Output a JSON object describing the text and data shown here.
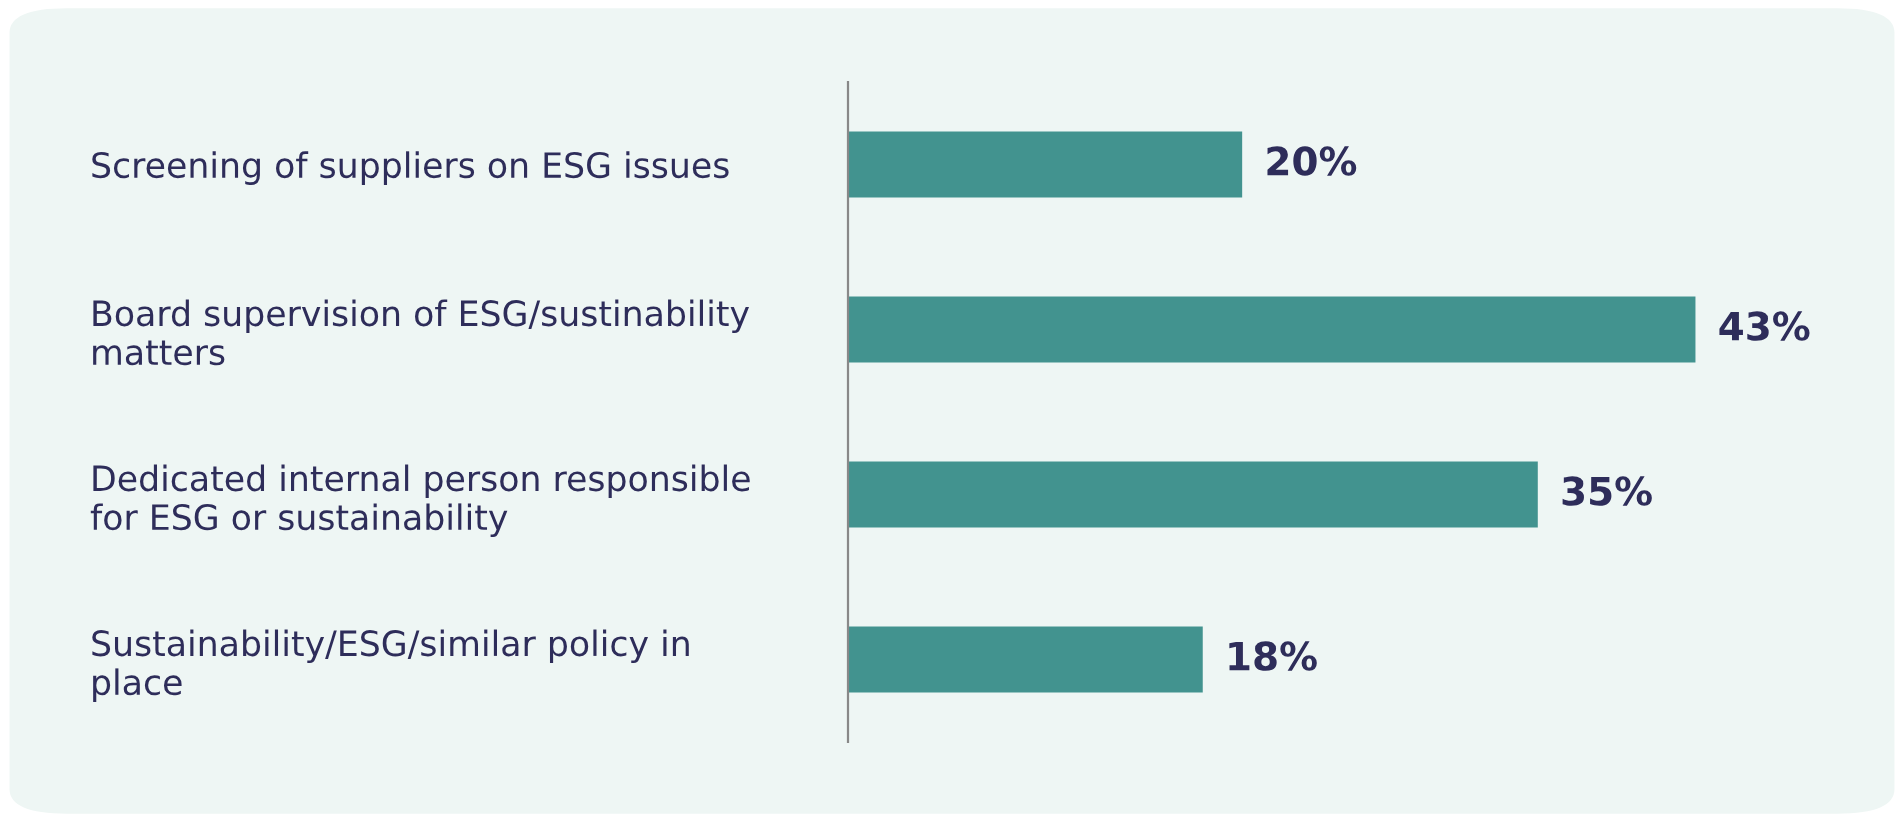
{
  "chart_data": {
    "type": "bar",
    "orientation": "horizontal",
    "categories": [
      "Screening of suppliers on ESG issues",
      "Board supervision of ESG/sustinability\nmatters",
      "Dedicated internal person responsible\nfor ESG or sustainability",
      "Sustainability/ESG/similar policy in\nplace"
    ],
    "values": [
      20,
      43,
      35,
      18
    ],
    "value_labels": [
      "20%",
      "43%",
      "35%",
      "18%"
    ],
    "color": "#42938f",
    "grid": false,
    "legend": false,
    "tick_labels": "y"
  }
}
